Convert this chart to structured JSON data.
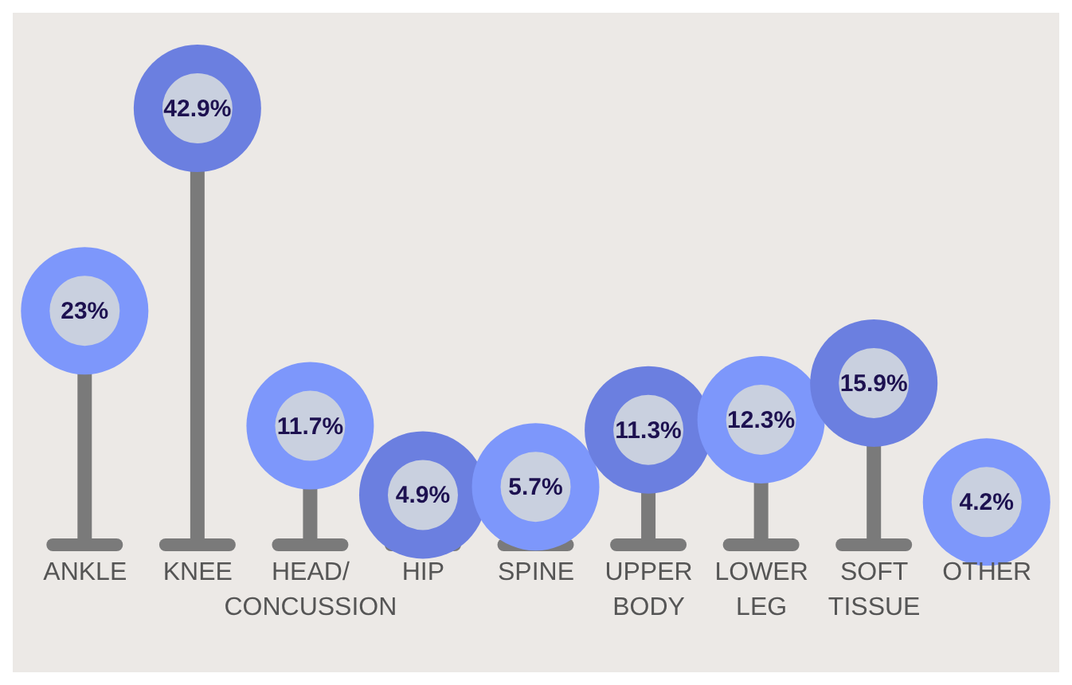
{
  "chart_data": {
    "type": "lollipop",
    "categories": [
      "ANKLE",
      "KNEE",
      "HEAD/CONCUSSION",
      "HIP",
      "SPINE",
      "UPPER BODY",
      "LOWER LEG",
      "SOFT TISSUE",
      "OTHER"
    ],
    "values": [
      23,
      42.9,
      11.7,
      4.9,
      5.7,
      11.3,
      12.3,
      15.9,
      4.2
    ],
    "colors": [
      "#7d97fb",
      "#6b7fe0",
      "#7d97fb",
      "#6b7fe0",
      "#7d97fb",
      "#6b7fe0",
      "#7d97fb",
      "#6b7fe0",
      "#7d97fb"
    ],
    "value_labels": [
      "23%",
      "42.9%",
      "11.7%",
      "4.9%",
      "5.7%",
      "11.3%",
      "12.3%",
      "15.9%",
      "4.2%"
    ],
    "legend": false
  }
}
